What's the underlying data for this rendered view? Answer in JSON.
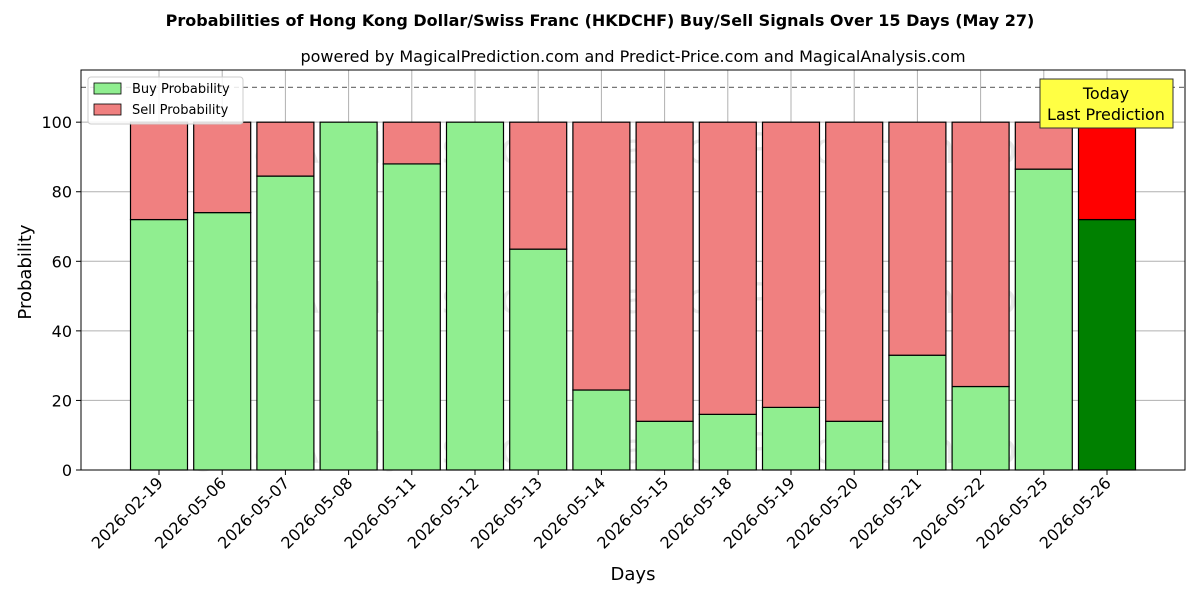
{
  "chart_data": {
    "type": "bar",
    "stacked": true,
    "title": "Probabilities of Hong Kong Dollar/Swiss Franc (HKDCHF) Buy/Sell Signals Over 15 Days (May 27)",
    "subtitle": "powered by MagicalPrediction.com and Predict-Price.com and MagicalAnalysis.com",
    "xlabel": "Days",
    "ylabel": "Probability",
    "ylim": [
      0,
      115
    ],
    "yticks": [
      0,
      20,
      40,
      60,
      80,
      100
    ],
    "grid": true,
    "legend_placement": "top-left",
    "reference_line": 110,
    "categories": [
      "2026-02-19",
      "2026-05-06",
      "2026-05-07",
      "2026-05-08",
      "2026-05-11",
      "2026-05-12",
      "2026-05-13",
      "2026-05-14",
      "2026-05-15",
      "2026-05-18",
      "2026-05-19",
      "2026-05-20",
      "2026-05-21",
      "2026-05-22",
      "2026-05-25",
      "2026-05-26"
    ],
    "series": [
      {
        "name": "Buy Probability",
        "color": "#90ee90",
        "values": [
          72,
          74,
          84.5,
          100,
          88,
          100,
          63.5,
          23,
          14,
          16,
          18,
          14,
          33,
          24,
          86.5,
          72
        ]
      },
      {
        "name": "Sell Probability",
        "color": "#f08080",
        "values": [
          28,
          26,
          15.5,
          0,
          12,
          0,
          36.5,
          77,
          86,
          84,
          82,
          86,
          67,
          76,
          13.5,
          28
        ]
      }
    ],
    "highlight": {
      "index": 15,
      "buy_color": "#008000",
      "sell_color": "#ff0000"
    },
    "annotation": {
      "lines": [
        "Today",
        "Last Prediction"
      ],
      "background": "#ffff44"
    },
    "watermarks": [
      "MagicalAnalysis.com",
      "MagicalPrediction.com"
    ]
  }
}
